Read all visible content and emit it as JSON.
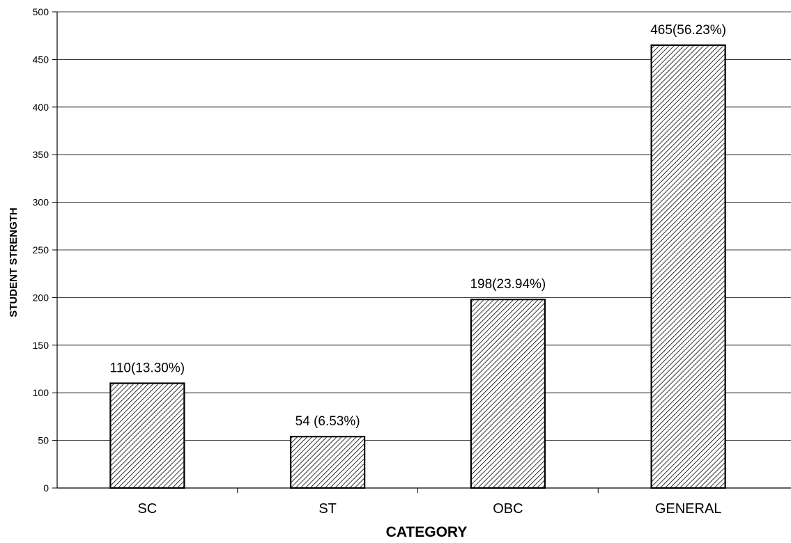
{
  "chart_data": {
    "type": "bar",
    "categories": [
      "SC",
      "ST",
      "OBC",
      "GENERAL"
    ],
    "values": [
      110,
      54,
      198,
      465
    ],
    "data_labels": [
      "110(13.30%)",
      "54 (6.53%)",
      "198(23.94%)",
      "465(56.23%)"
    ],
    "xlabel": "CATEGORY",
    "ylabel": "STUDENT STRENGTH",
    "ylim": [
      0,
      500
    ],
    "yticks": [
      0,
      50,
      100,
      150,
      200,
      250,
      300,
      350,
      400,
      450,
      500
    ],
    "grid": true,
    "bar_fill": "hatched",
    "colors": {
      "bar_stroke": "#000000",
      "hatch": "#000000",
      "grid": "#000000"
    }
  }
}
